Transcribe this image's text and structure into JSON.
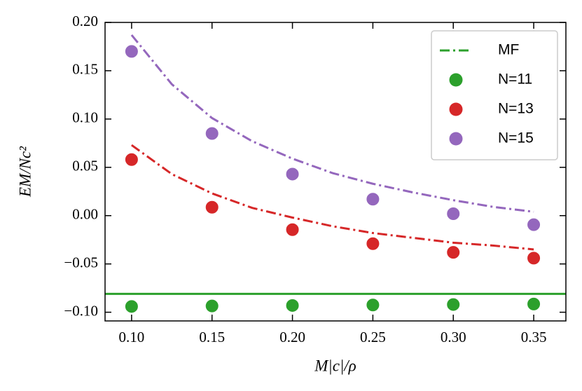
{
  "chart_data": {
    "type": "scatter",
    "xlabel": "M|c|/ρ",
    "ylabel": "EM/Nc²",
    "xlim": [
      0.0835,
      0.37
    ],
    "ylim": [
      -0.109,
      0.2
    ],
    "xticks": [
      {
        "value": 0.1,
        "label": "0.10"
      },
      {
        "value": 0.15,
        "label": "0.15"
      },
      {
        "value": 0.2,
        "label": "0.20"
      },
      {
        "value": 0.25,
        "label": "0.25"
      },
      {
        "value": 0.3,
        "label": "0.30"
      },
      {
        "value": 0.35,
        "label": "0.35"
      }
    ],
    "yticks": [
      {
        "value": -0.1,
        "label": "−0.10"
      },
      {
        "value": -0.05,
        "label": "−0.05"
      },
      {
        "value": 0,
        "label": "0.00"
      },
      {
        "value": 0.05,
        "label": "0.05"
      },
      {
        "value": 0.1,
        "label": "0.10"
      },
      {
        "value": 0.15,
        "label": "0.15"
      },
      {
        "value": 0.2,
        "label": "0.20"
      }
    ],
    "legend": "upper right",
    "series": [
      {
        "name": "MF",
        "color": "#2ca02c",
        "kind": "hline",
        "values": [
          -0.081
        ]
      },
      {
        "name": "N=11",
        "color": "#2ca02c",
        "kind": "points",
        "x": [
          0.1,
          0.15,
          0.2,
          0.25,
          0.3,
          0.35
        ],
        "values": [
          -0.094,
          -0.0935,
          -0.093,
          -0.0925,
          -0.092,
          -0.0915
        ]
      },
      {
        "name": "N=13",
        "color": "#d62728",
        "kind": "points",
        "x": [
          0.1,
          0.15,
          0.2,
          0.25,
          0.3,
          0.35
        ],
        "values": [
          0.058,
          0.0087,
          -0.0145,
          -0.029,
          -0.038,
          -0.044
        ]
      },
      {
        "name": "N=15",
        "color": "#9467bd",
        "kind": "points",
        "x": [
          0.1,
          0.15,
          0.2,
          0.25,
          0.3,
          0.35
        ],
        "values": [
          0.17,
          0.085,
          0.043,
          0.017,
          0.002,
          -0.0094
        ]
      },
      {
        "color": "#d62728",
        "kind": "curve",
        "x": [
          0.1,
          0.125,
          0.15,
          0.175,
          0.2,
          0.225,
          0.25,
          0.275,
          0.3,
          0.325,
          0.35
        ],
        "values": [
          0.073,
          0.043,
          0.023,
          0.008,
          -0.002,
          -0.011,
          -0.018,
          -0.023,
          -0.028,
          -0.031,
          -0.035
        ]
      },
      {
        "color": "#9467bd",
        "kind": "curve",
        "x": [
          0.1,
          0.125,
          0.15,
          0.175,
          0.2,
          0.225,
          0.25,
          0.275,
          0.3,
          0.325,
          0.35
        ],
        "values": [
          0.187,
          0.136,
          0.101,
          0.077,
          0.059,
          0.044,
          0.033,
          0.024,
          0.016,
          0.009,
          0.004
        ]
      }
    ]
  }
}
